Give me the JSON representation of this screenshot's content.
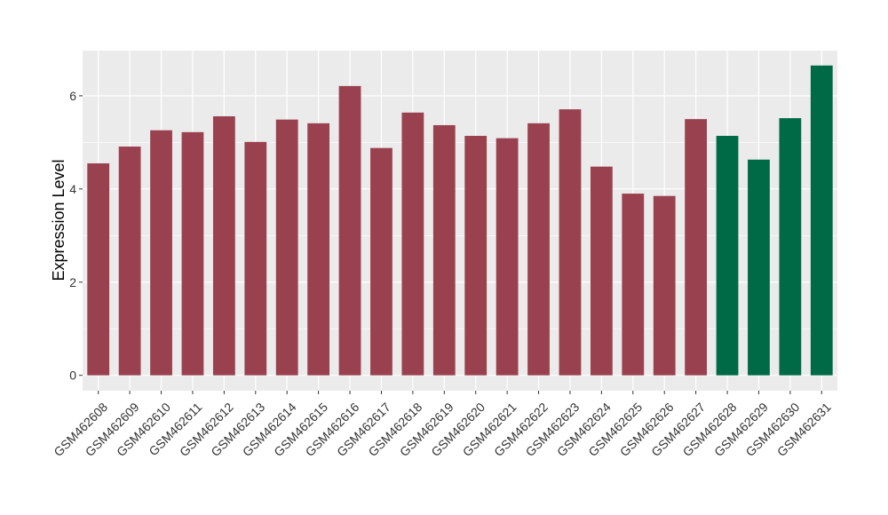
{
  "chart_data": {
    "type": "bar",
    "y_label": "Expression Level",
    "categories": [
      "GSM462608",
      "GSM462609",
      "GSM462610",
      "GSM462611",
      "GSM462612",
      "GSM462613",
      "GSM462614",
      "GSM462615",
      "GSM462616",
      "GSM462617",
      "GSM462618",
      "GSM462619",
      "GSM462620",
      "GSM462621",
      "GSM462622",
      "GSM462623",
      "GSM462624",
      "GSM462625",
      "GSM462626",
      "GSM462627",
      "GSM462628",
      "GSM462629",
      "GSM462630",
      "GSM462631"
    ],
    "values": [
      4.55,
      4.91,
      5.26,
      5.22,
      5.56,
      5.01,
      5.49,
      5.41,
      6.21,
      4.88,
      5.64,
      5.37,
      5.14,
      5.09,
      5.41,
      5.71,
      4.48,
      3.9,
      3.85,
      5.5,
      5.14,
      4.63,
      5.52,
      6.65
    ],
    "colors": [
      "#9a4150",
      "#9a4150",
      "#9a4150",
      "#9a4150",
      "#9a4150",
      "#9a4150",
      "#9a4150",
      "#9a4150",
      "#9a4150",
      "#9a4150",
      "#9a4150",
      "#9a4150",
      "#9a4150",
      "#9a4150",
      "#9a4150",
      "#9a4150",
      "#9a4150",
      "#9a4150",
      "#9a4150",
      "#9a4150",
      "#006a46",
      "#006a46",
      "#006a46",
      "#006a46"
    ],
    "ylim": [
      -0.33,
      6.97
    ],
    "yticks": [
      0,
      2,
      4,
      6
    ],
    "grid": true
  }
}
